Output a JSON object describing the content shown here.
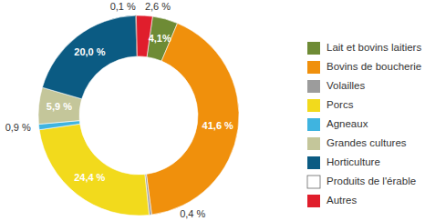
{
  "chart_data": {
    "type": "donut",
    "categories": [
      "Lait et bovins laitiers",
      "Bovins de boucherie",
      "Volailles",
      "Porcs",
      "Agneaux",
      "Grandes cultures",
      "Horticulture",
      "Produits de l'érable",
      "Autres"
    ],
    "values": [
      4.1,
      41.6,
      0.4,
      24.4,
      0.9,
      5.9,
      20.0,
      0.1,
      2.6
    ],
    "value_labels": [
      "4,1%",
      "41,6 %",
      "0,4 %",
      "24,4 %",
      "0,9 %",
      "5,9 %",
      "20,0 %",
      "0,1 %",
      "2,6 %"
    ],
    "colors": [
      "#6e8b35",
      "#f0900c",
      "#9c9c9c",
      "#f2da1c",
      "#3fb4e0",
      "#c4c69a",
      "#0b5b83",
      "#ffffff",
      "#e01e2c"
    ],
    "data_labels": true,
    "legend": "right"
  }
}
